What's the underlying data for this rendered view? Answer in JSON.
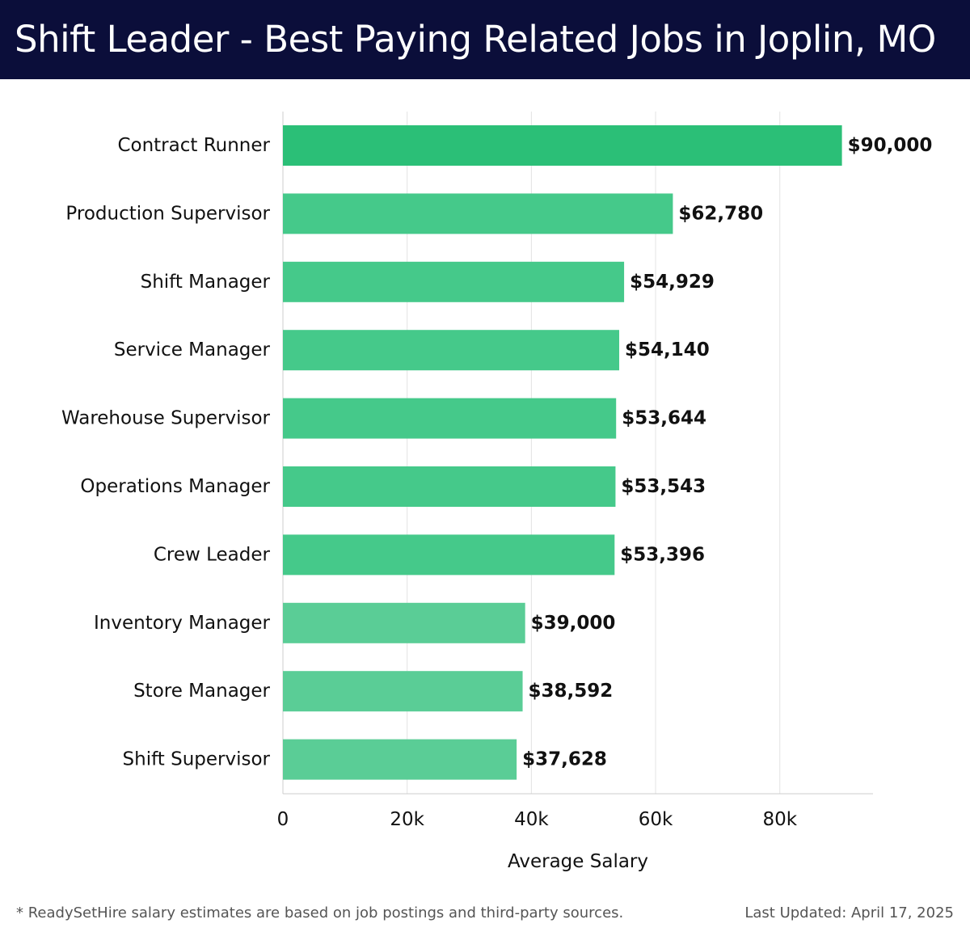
{
  "title": "Shift Leader - Best Paying Related Jobs in Joplin, MO",
  "footnote": "* ReadySetHire salary estimates are based on job postings and third-party sources.",
  "last_updated": "Last Updated: April 17, 2025",
  "colors": {
    "header_bg": "#0b0e3a",
    "bar_top": "#2bbf77",
    "bar_mid": "#45c98a",
    "bar_low": "#5acd96",
    "grid": "#e3e3e3"
  },
  "chart_data": {
    "type": "bar",
    "orientation": "horizontal",
    "xlabel": "Average Salary",
    "ylabel": "",
    "xlim": [
      0,
      95000
    ],
    "xticks": [
      0,
      20000,
      40000,
      60000,
      80000
    ],
    "xtick_labels": [
      "0",
      "20k",
      "40k",
      "60k",
      "80k"
    ],
    "grid": true,
    "categories": [
      "Contract Runner",
      "Production Supervisor",
      "Shift Manager",
      "Service Manager",
      "Warehouse Supervisor",
      "Operations Manager",
      "Crew Leader",
      "Inventory Manager",
      "Store Manager",
      "Shift Supervisor"
    ],
    "values": [
      90000,
      62780,
      54929,
      54140,
      53644,
      53543,
      53396,
      39000,
      38592,
      37628
    ],
    "value_labels": [
      "$90,000",
      "$62,780",
      "$54,929",
      "$54,140",
      "$53,644",
      "$53,543",
      "$53,396",
      "$39,000",
      "$38,592",
      "$37,628"
    ]
  }
}
